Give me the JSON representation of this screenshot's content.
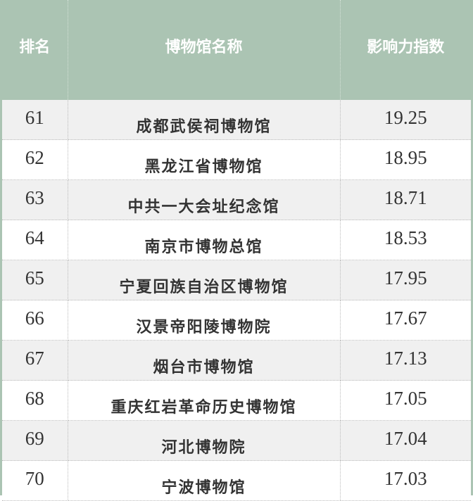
{
  "headers": {
    "rank": "排名",
    "name": "博物馆名称",
    "score": "影响力指数"
  },
  "colors": {
    "header_bg": "#abc4b3",
    "header_text": "#ffffff",
    "row_alt": "#f0f0f0"
  },
  "rows": [
    {
      "rank": "61",
      "name": "成都武侯祠博物馆",
      "score": "19.25"
    },
    {
      "rank": "62",
      "name": "黑龙江省博物馆",
      "score": "18.95"
    },
    {
      "rank": "63",
      "name": "中共一大会址纪念馆",
      "score": "18.71"
    },
    {
      "rank": "64",
      "name": "南京市博物总馆",
      "score": "18.53"
    },
    {
      "rank": "65",
      "name": "宁夏回族自治区博物馆",
      "score": "17.95"
    },
    {
      "rank": "66",
      "name": "汉景帝阳陵博物院",
      "score": "17.67"
    },
    {
      "rank": "67",
      "name": "烟台市博物馆",
      "score": "17.13"
    },
    {
      "rank": "68",
      "name": "重庆红岩革命历史博物馆",
      "score": "17.05"
    },
    {
      "rank": "69",
      "name": "河北博物院",
      "score": "17.04"
    },
    {
      "rank": "70",
      "name": "宁波博物馆",
      "score": "17.03"
    }
  ]
}
